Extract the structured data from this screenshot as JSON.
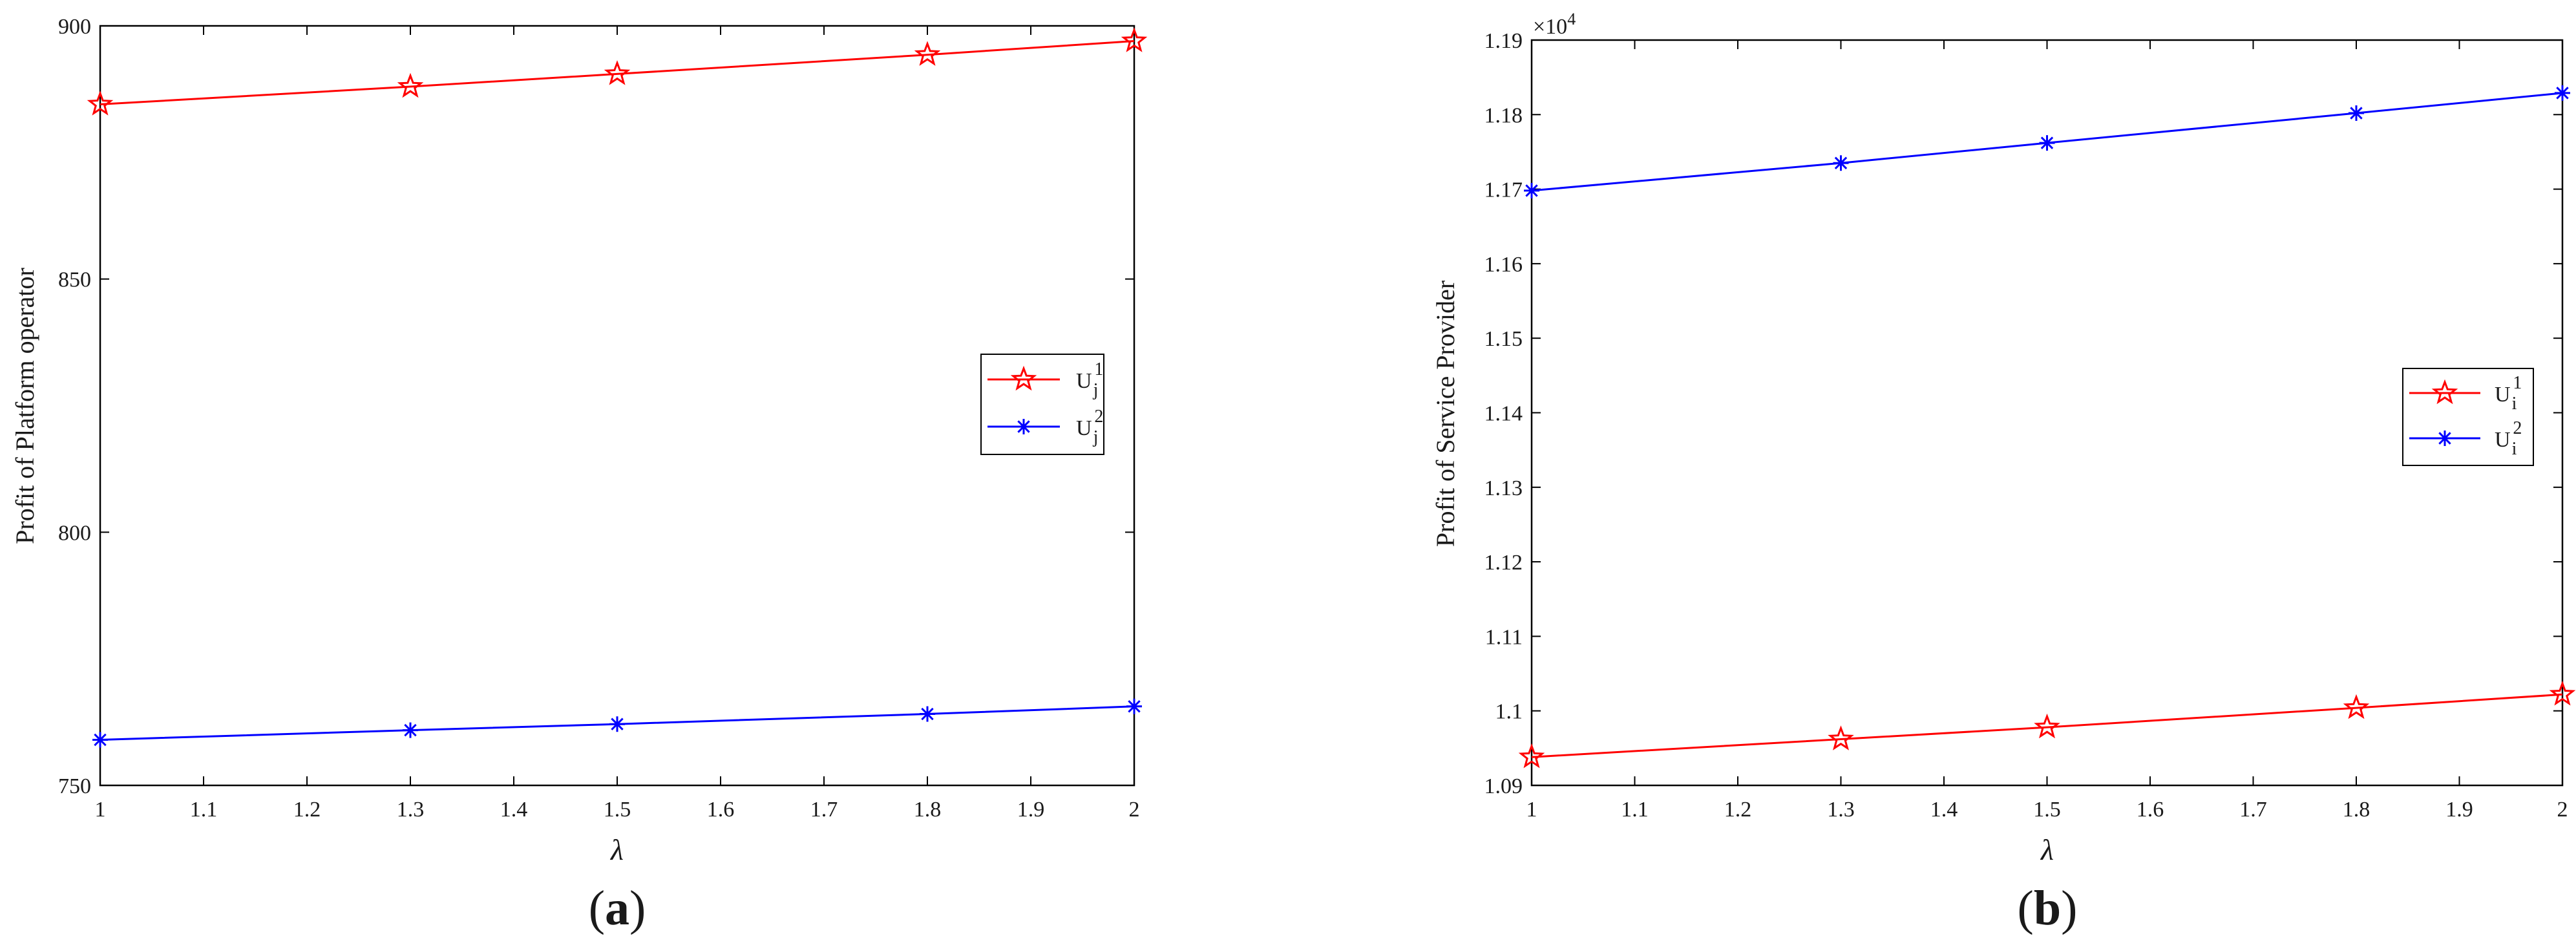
{
  "chart_data": [
    {
      "type": "line",
      "panel": "a",
      "ylabel": "Profit of Platform operator",
      "xlabel": "λ",
      "xlim": [
        1,
        2
      ],
      "ylim": [
        750,
        900
      ],
      "x_ticks": [
        "1",
        "1.1",
        "1.2",
        "1.3",
        "1.4",
        "1.5",
        "1.6",
        "1.7",
        "1.8",
        "1.9",
        "2"
      ],
      "y_ticks": [
        "750",
        "800",
        "850",
        "900"
      ],
      "x": [
        1,
        1.3,
        1.5,
        1.8,
        2
      ],
      "series": [
        {
          "name": "U",
          "sub": "j",
          "sup": "1",
          "color": "#ff0000",
          "marker": "star",
          "values": [
            884.5,
            888,
            890.5,
            894.3,
            897
          ]
        },
        {
          "name": "U",
          "sub": "j",
          "sup": "2",
          "color": "#0000ff",
          "marker": "asterisk",
          "values": [
            759,
            760.9,
            762.1,
            764.1,
            765.6
          ]
        }
      ],
      "legend": "right-middle",
      "grid": false
    },
    {
      "type": "line",
      "panel": "b",
      "ylabel": "Profit of Service Provider",
      "xlabel": "λ",
      "xlim": [
        1,
        2
      ],
      "ylim": [
        1.09,
        1.19
      ],
      "exponent_base": "×10",
      "exponent_power": "4",
      "x_ticks": [
        "1",
        "1.1",
        "1.2",
        "1.3",
        "1.4",
        "1.5",
        "1.6",
        "1.7",
        "1.8",
        "1.9",
        "2"
      ],
      "y_ticks": [
        "1.09",
        "1.1",
        "1.11",
        "1.12",
        "1.13",
        "1.14",
        "1.15",
        "1.16",
        "1.17",
        "1.18",
        "1.19"
      ],
      "x": [
        1,
        1.3,
        1.5,
        1.8,
        2
      ],
      "series": [
        {
          "name": "U",
          "sub": "i",
          "sup": "2",
          "color": "#0000ff",
          "marker": "asterisk",
          "values": [
            1.1698,
            1.1735,
            1.1762,
            1.1802,
            1.1829
          ]
        },
        {
          "name": "U",
          "sub": "i",
          "sup": "1",
          "color": "#ff0000",
          "marker": "star",
          "values": [
            1.0938,
            1.0962,
            1.0978,
            1.1004,
            1.1022
          ]
        }
      ],
      "legend": "right-middle",
      "grid": false
    }
  ],
  "panel_labels": [
    {
      "open": "(",
      "letter": "a",
      "close": ")"
    },
    {
      "open": "(",
      "letter": "b",
      "close": ")"
    }
  ]
}
